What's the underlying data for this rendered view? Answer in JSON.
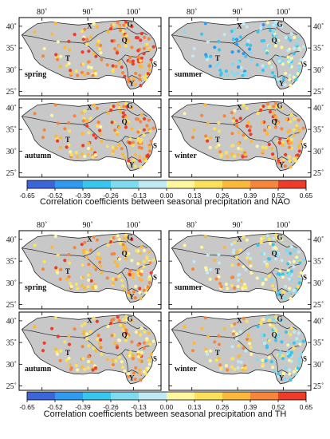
{
  "figure": {
    "lon_ticks": [
      "80˚",
      "90˚",
      "100˚"
    ],
    "lat_ticks": [
      "40˚",
      "35˚",
      "30˚",
      "25˚"
    ],
    "region_labels": [
      "X",
      "G",
      "Q",
      "T",
      "S",
      "Y"
    ],
    "blocks": [
      {
        "title": "Correlation coefficients between seasonal precipitation and NAO",
        "panels": [
          {
            "season": "spring"
          },
          {
            "season": "summer"
          },
          {
            "season": "autumn"
          },
          {
            "season": "winter"
          }
        ]
      },
      {
        "title": "Correlation coefficients between seasonal precipitation and TH",
        "panels": [
          {
            "season": "spring"
          },
          {
            "season": "summer"
          },
          {
            "season": "autumn"
          },
          {
            "season": "winter"
          }
        ]
      }
    ],
    "colorbar": {
      "ticks": [
        "-0.65",
        "-0.52",
        "-0.39",
        "-0.26",
        "-0.13",
        "0.00",
        "0.13",
        "0.26",
        "0.39",
        "0.52",
        "0.65"
      ],
      "colors": [
        "#3a66d9",
        "#2e9bf0",
        "#36c6ee",
        "#7fdcf0",
        "#bfeaf4",
        "#fff6a0",
        "#fde15a",
        "#fbb83a",
        "#f7853a",
        "#ef3b2a"
      ]
    },
    "land_color": "#c8c8c8"
  }
}
